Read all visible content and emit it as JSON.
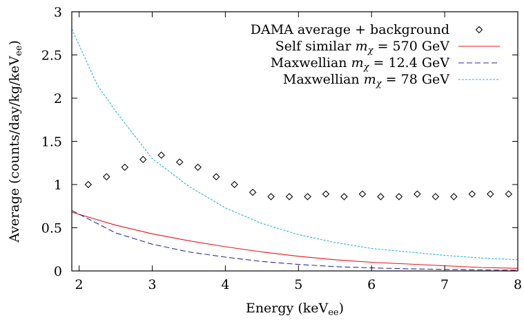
{
  "chart_data": {
    "type": "line",
    "xlabel": "Energy (keV",
    "xlabel_sub": "ee",
    "xlabel_close": ")",
    "ylabel": "Average (counts/day/kg/keV",
    "ylabel_sub": "ee",
    "ylabel_close": ")",
    "xlim": [
      1.9,
      8.0
    ],
    "ylim": [
      0,
      3
    ],
    "xticks": [
      2,
      3,
      4,
      5,
      6,
      7,
      8
    ],
    "yticks": [
      0,
      0.5,
      1,
      1.5,
      2,
      2.5,
      3
    ],
    "legend_position": "top-right",
    "series": [
      {
        "name": "DAMA average + background",
        "style": "points",
        "marker": "diamond",
        "color": "#000000",
        "x": [
          2.125,
          2.375,
          2.625,
          2.875,
          3.125,
          3.375,
          3.625,
          3.875,
          4.125,
          4.375,
          4.625,
          4.875,
          5.125,
          5.375,
          5.625,
          5.875,
          6.125,
          6.375,
          6.625,
          6.875,
          7.125,
          7.375,
          7.625,
          7.875
        ],
        "y": [
          1.0,
          1.09,
          1.2,
          1.29,
          1.34,
          1.26,
          1.2,
          1.09,
          1.0,
          0.91,
          0.86,
          0.86,
          0.86,
          0.89,
          0.86,
          0.89,
          0.86,
          0.86,
          0.89,
          0.86,
          0.86,
          0.89,
          0.89,
          0.89
        ]
      },
      {
        "name": "Self similar",
        "name_math": "m",
        "name_sub": "χ",
        "name_value": " = 570 GeV",
        "style": "solid",
        "color": "#e8141b",
        "x": [
          1.9,
          2.5,
          3.0,
          3.5,
          4.0,
          4.5,
          5.0,
          5.5,
          6.0,
          6.5,
          7.0,
          7.5,
          8.0
        ],
        "y": [
          0.68,
          0.53,
          0.43,
          0.35,
          0.28,
          0.22,
          0.17,
          0.13,
          0.1,
          0.08,
          0.06,
          0.04,
          0.03
        ]
      },
      {
        "name": "Maxwellian",
        "name_math": "m",
        "name_sub": "χ",
        "name_value": " = 12.4 GeV",
        "style": "dashed",
        "color": "#2a2aa0",
        "x": [
          1.9,
          2.5,
          3.0,
          3.5,
          4.0,
          4.5,
          5.0,
          5.5,
          6.0,
          6.5,
          7.0,
          7.5,
          8.0
        ],
        "y": [
          0.7,
          0.44,
          0.31,
          0.22,
          0.16,
          0.11,
          0.075,
          0.05,
          0.035,
          0.025,
          0.018,
          0.012,
          0.008
        ]
      },
      {
        "name": "Maxwellian",
        "name_math": "m",
        "name_sub": "χ",
        "name_value": " = 78 GeV",
        "style": "dashed",
        "color": "#1fb3e0",
        "x": [
          1.9,
          2.25,
          2.5,
          3.0,
          3.5,
          4.0,
          4.5,
          5.0,
          5.5,
          6.0,
          6.5,
          7.0,
          7.5,
          8.0
        ],
        "y": [
          2.8,
          2.15,
          1.85,
          1.3,
          0.98,
          0.73,
          0.55,
          0.42,
          0.33,
          0.26,
          0.22,
          0.18,
          0.15,
          0.13
        ]
      }
    ]
  }
}
